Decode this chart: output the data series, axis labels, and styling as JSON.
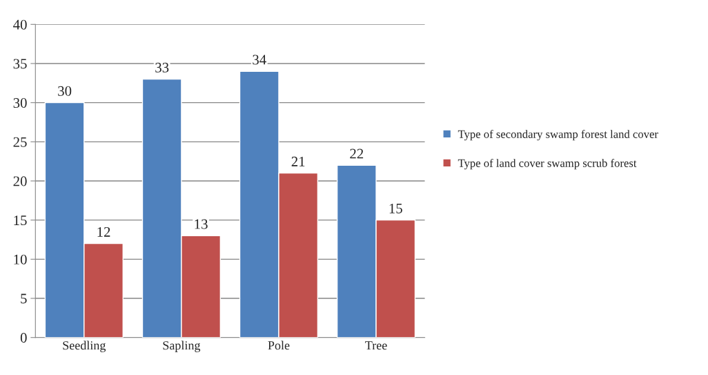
{
  "chart_data": {
    "type": "bar",
    "categories": [
      "Seedling",
      "Sapling",
      "Pole",
      "Tree"
    ],
    "series": [
      {
        "name": "Type of secondary swamp forest land cover",
        "color": "#4f81bd",
        "values": [
          30,
          33,
          34,
          22
        ]
      },
      {
        "name": "Type of land cover swamp scrub forest",
        "color": "#c0504d",
        "values": [
          12,
          13,
          21,
          15
        ]
      }
    ],
    "ylim": [
      0,
      40
    ],
    "yticks": [
      0,
      5,
      10,
      15,
      20,
      25,
      30,
      35,
      40
    ],
    "grid": "y",
    "legend": "right",
    "data_labels": true
  }
}
